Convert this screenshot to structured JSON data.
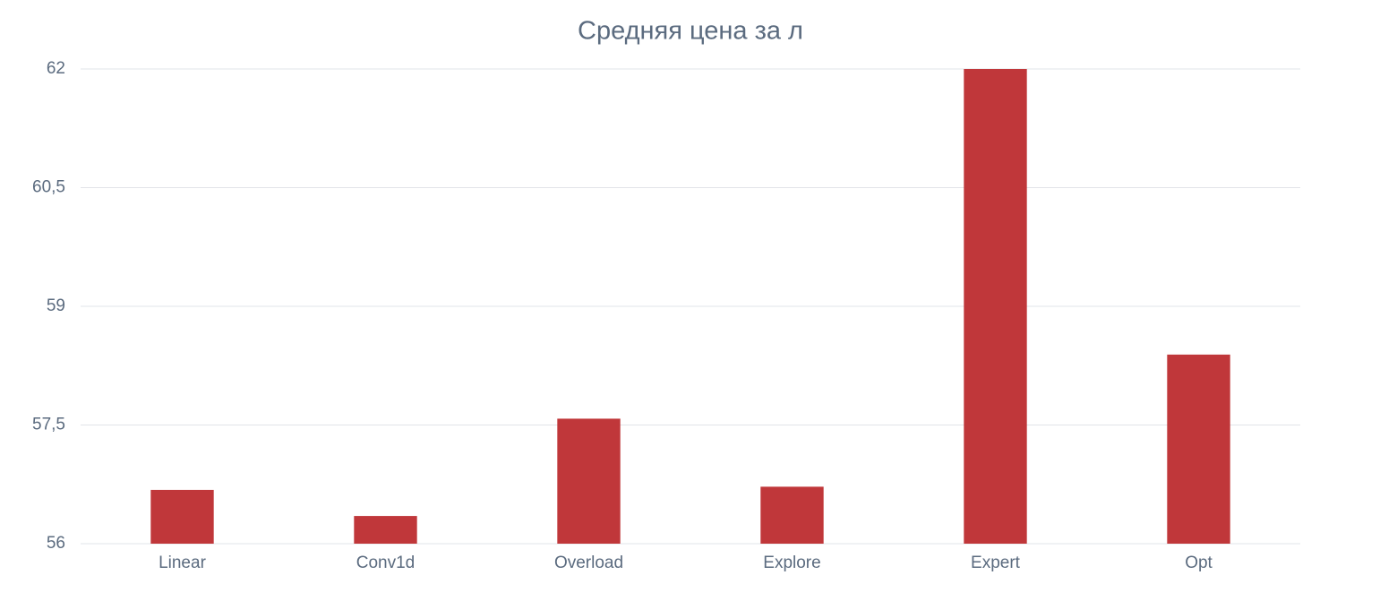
{
  "chart_data": {
    "type": "bar",
    "title": "Средняя цена за л",
    "categories": [
      "Linear",
      "Conv1d",
      "Overload",
      "Explore",
      "Expert",
      "Opt"
    ],
    "values": [
      56.68,
      56.35,
      57.58,
      56.72,
      62,
      58.39
    ],
    "color": "#c0373a",
    "ylim": [
      56,
      62
    ],
    "yticks": [
      56,
      {
        "value": 57.5,
        "label": "57,5"
      },
      59,
      {
        "value": 60.5,
        "label": "60,5"
      },
      62
    ],
    "grid": true
  }
}
